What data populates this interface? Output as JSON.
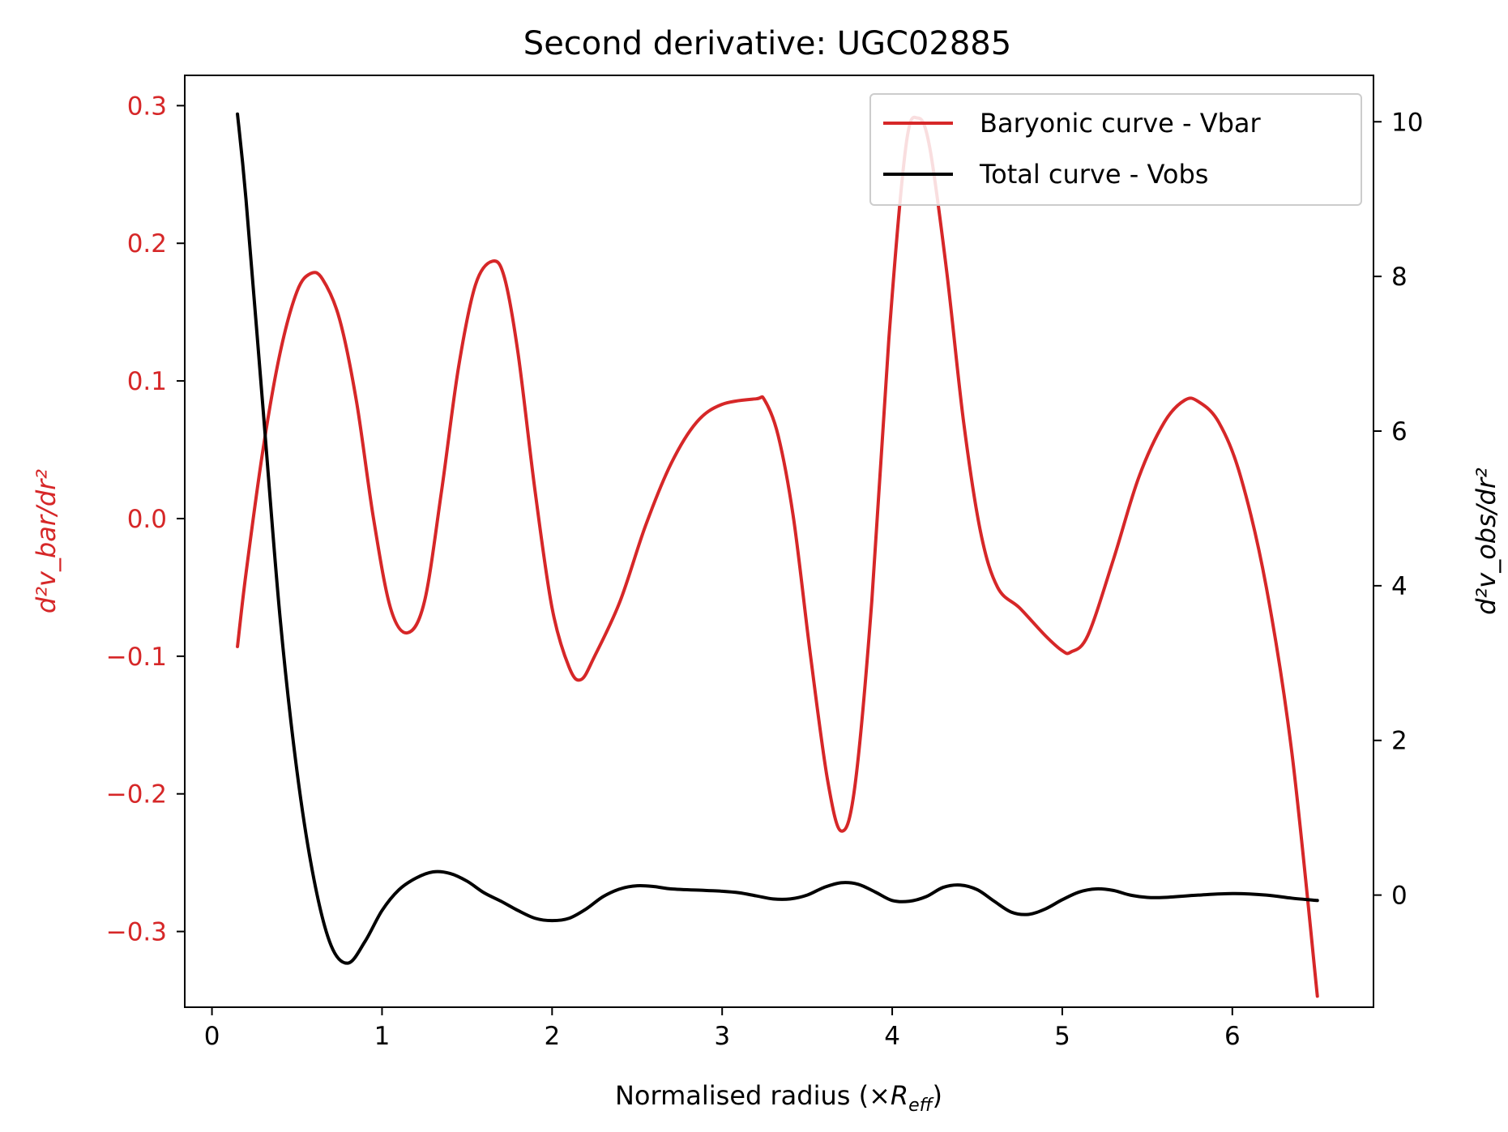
{
  "chart_data": {
    "type": "line",
    "title": "Second derivative: UGC02885",
    "xlabel": "Normalised radius (×R_eff)",
    "xlabel_main": "Normalised radius (×",
    "xlabel_sym": "R",
    "xlabel_sub": "eff",
    "xlabel_close": ")",
    "ylabel_left": "d²v_bar/dr²",
    "ylabel_right": "d²v_obs/dr²",
    "xlim": [
      -0.16,
      6.83
    ],
    "ylim_left": [
      -0.355,
      0.322
    ],
    "ylim_right": [
      -1.45,
      10.6
    ],
    "x_ticks": [
      0,
      1,
      2,
      3,
      4,
      5,
      6
    ],
    "x_tick_labels": [
      "0",
      "1",
      "2",
      "3",
      "4",
      "5",
      "6"
    ],
    "left_ticks": [
      -0.3,
      -0.2,
      -0.1,
      0.0,
      0.1,
      0.2,
      0.3
    ],
    "left_tick_labels": [
      "−0.3",
      "−0.2",
      "−0.1",
      "0.0",
      "0.1",
      "0.2",
      "0.3"
    ],
    "right_ticks": [
      0,
      2,
      4,
      6,
      8,
      10
    ],
    "right_tick_labels": [
      "0",
      "2",
      "4",
      "6",
      "8",
      "10"
    ],
    "legend_position": "upper right",
    "series": [
      {
        "name": "Baryonic curve - Vbar",
        "axis": "left",
        "color": "#d62728",
        "points": [
          [
            0.15,
            -0.093
          ],
          [
            0.2,
            -0.04
          ],
          [
            0.3,
            0.05
          ],
          [
            0.4,
            0.12
          ],
          [
            0.5,
            0.165
          ],
          [
            0.58,
            0.178
          ],
          [
            0.65,
            0.174
          ],
          [
            0.75,
            0.145
          ],
          [
            0.85,
            0.085
          ],
          [
            0.95,
            0.0
          ],
          [
            1.05,
            -0.065
          ],
          [
            1.15,
            -0.083
          ],
          [
            1.25,
            -0.06
          ],
          [
            1.35,
            0.02
          ],
          [
            1.45,
            0.11
          ],
          [
            1.55,
            0.17
          ],
          [
            1.65,
            0.187
          ],
          [
            1.72,
            0.175
          ],
          [
            1.8,
            0.12
          ],
          [
            1.9,
            0.02
          ],
          [
            2.0,
            -0.065
          ],
          [
            2.1,
            -0.108
          ],
          [
            2.17,
            -0.117
          ],
          [
            2.25,
            -0.1
          ],
          [
            2.4,
            -0.06
          ],
          [
            2.55,
            -0.005
          ],
          [
            2.7,
            0.04
          ],
          [
            2.85,
            0.07
          ],
          [
            3.0,
            0.083
          ],
          [
            3.2,
            0.087
          ],
          [
            3.25,
            0.086
          ],
          [
            3.33,
            0.06
          ],
          [
            3.42,
            0.0
          ],
          [
            3.52,
            -0.1
          ],
          [
            3.62,
            -0.19
          ],
          [
            3.7,
            -0.227
          ],
          [
            3.78,
            -0.195
          ],
          [
            3.88,
            -0.06
          ],
          [
            3.98,
            0.13
          ],
          [
            4.08,
            0.27
          ],
          [
            4.15,
            0.291
          ],
          [
            4.22,
            0.27
          ],
          [
            4.32,
            0.18
          ],
          [
            4.42,
            0.07
          ],
          [
            4.52,
            -0.01
          ],
          [
            4.62,
            -0.05
          ],
          [
            4.75,
            -0.065
          ],
          [
            4.9,
            -0.085
          ],
          [
            5.0,
            -0.096
          ],
          [
            5.05,
            -0.097
          ],
          [
            5.15,
            -0.085
          ],
          [
            5.3,
            -0.03
          ],
          [
            5.45,
            0.03
          ],
          [
            5.6,
            0.07
          ],
          [
            5.72,
            0.086
          ],
          [
            5.8,
            0.085
          ],
          [
            5.92,
            0.07
          ],
          [
            6.05,
            0.03
          ],
          [
            6.2,
            -0.05
          ],
          [
            6.35,
            -0.17
          ],
          [
            6.5,
            -0.347
          ]
        ]
      },
      {
        "name": "Total curve - Vobs",
        "axis": "right",
        "color": "#000000",
        "points": [
          [
            0.15,
            10.1
          ],
          [
            0.2,
            9.0
          ],
          [
            0.3,
            6.3
          ],
          [
            0.4,
            3.6
          ],
          [
            0.5,
            1.6
          ],
          [
            0.6,
            0.2
          ],
          [
            0.7,
            -0.65
          ],
          [
            0.8,
            -0.88
          ],
          [
            0.9,
            -0.6
          ],
          [
            1.0,
            -0.2
          ],
          [
            1.1,
            0.07
          ],
          [
            1.2,
            0.22
          ],
          [
            1.3,
            0.3
          ],
          [
            1.4,
            0.28
          ],
          [
            1.5,
            0.18
          ],
          [
            1.6,
            0.03
          ],
          [
            1.7,
            -0.08
          ],
          [
            1.8,
            -0.2
          ],
          [
            1.9,
            -0.3
          ],
          [
            2.0,
            -0.33
          ],
          [
            2.1,
            -0.3
          ],
          [
            2.2,
            -0.18
          ],
          [
            2.3,
            -0.02
          ],
          [
            2.4,
            0.08
          ],
          [
            2.5,
            0.12
          ],
          [
            2.6,
            0.11
          ],
          [
            2.7,
            0.08
          ],
          [
            2.9,
            0.06
          ],
          [
            3.0,
            0.05
          ],
          [
            3.1,
            0.03
          ],
          [
            3.2,
            -0.01
          ],
          [
            3.3,
            -0.05
          ],
          [
            3.4,
            -0.05
          ],
          [
            3.5,
            0.0
          ],
          [
            3.6,
            0.1
          ],
          [
            3.7,
            0.16
          ],
          [
            3.8,
            0.14
          ],
          [
            3.9,
            0.04
          ],
          [
            4.0,
            -0.07
          ],
          [
            4.1,
            -0.08
          ],
          [
            4.2,
            -0.02
          ],
          [
            4.3,
            0.1
          ],
          [
            4.4,
            0.13
          ],
          [
            4.5,
            0.07
          ],
          [
            4.6,
            -0.08
          ],
          [
            4.7,
            -0.22
          ],
          [
            4.8,
            -0.25
          ],
          [
            4.9,
            -0.18
          ],
          [
            5.0,
            -0.06
          ],
          [
            5.1,
            0.04
          ],
          [
            5.2,
            0.08
          ],
          [
            5.3,
            0.06
          ],
          [
            5.4,
            0.0
          ],
          [
            5.5,
            -0.03
          ],
          [
            5.6,
            -0.03
          ],
          [
            5.8,
            0.0
          ],
          [
            6.0,
            0.02
          ],
          [
            6.2,
            0.0
          ],
          [
            6.35,
            -0.04
          ],
          [
            6.5,
            -0.07
          ]
        ]
      }
    ]
  }
}
